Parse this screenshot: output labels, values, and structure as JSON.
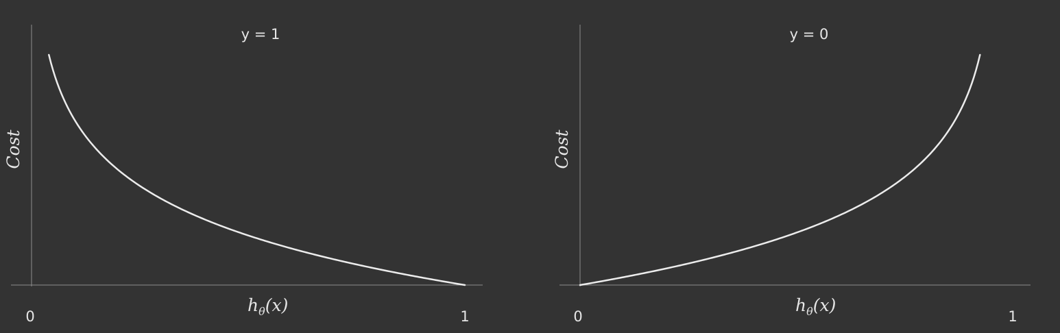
{
  "chart_data": [
    {
      "type": "line",
      "title": "y = 1",
      "xlabel": {
        "main": "h",
        "sub": "θ",
        "rest": "(x)"
      },
      "ylabel": "Cost",
      "x_ticks": [
        "0",
        "1"
      ],
      "xlim": [
        0,
        1
      ],
      "ylim": [
        0,
        3.0
      ],
      "function": "-log(x)",
      "x": [
        0.04,
        0.06,
        0.08,
        0.1,
        0.15,
        0.2,
        0.25,
        0.3,
        0.35,
        0.4,
        0.45,
        0.5,
        0.55,
        0.6,
        0.65,
        0.7,
        0.75,
        0.8,
        0.85,
        0.9,
        0.95,
        1.0
      ],
      "y": [
        3.22,
        2.81,
        2.53,
        2.3,
        1.9,
        1.61,
        1.39,
        1.2,
        1.05,
        0.92,
        0.8,
        0.69,
        0.6,
        0.51,
        0.43,
        0.36,
        0.29,
        0.22,
        0.16,
        0.11,
        0.05,
        0.0
      ],
      "grid": false
    },
    {
      "type": "line",
      "title": "y = 0",
      "xlabel": {
        "main": "h",
        "sub": "θ",
        "rest": "(x)"
      },
      "ylabel": "Cost",
      "x_ticks": [
        "0",
        "1"
      ],
      "xlim": [
        0,
        1
      ],
      "ylim": [
        0,
        3.0
      ],
      "function": "-log(1-x)",
      "x": [
        0.0,
        0.05,
        0.1,
        0.15,
        0.2,
        0.25,
        0.3,
        0.35,
        0.4,
        0.45,
        0.5,
        0.55,
        0.6,
        0.65,
        0.7,
        0.75,
        0.8,
        0.85,
        0.9,
        0.92,
        0.94,
        0.96
      ],
      "y": [
        0.0,
        0.05,
        0.11,
        0.16,
        0.22,
        0.29,
        0.36,
        0.43,
        0.51,
        0.6,
        0.69,
        0.8,
        0.92,
        1.05,
        1.2,
        1.39,
        1.61,
        1.9,
        2.3,
        2.53,
        2.81,
        3.22
      ],
      "grid": false
    }
  ]
}
